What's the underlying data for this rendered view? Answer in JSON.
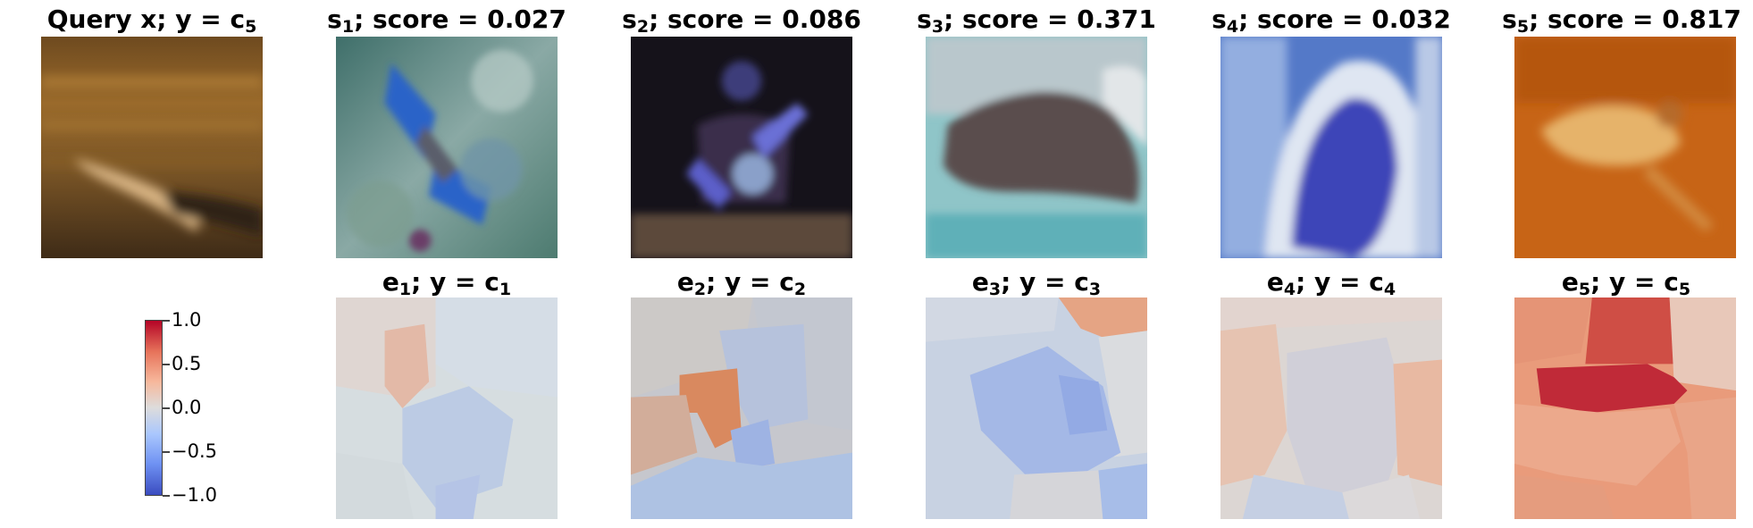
{
  "query": {
    "label": "Query x; y = ",
    "class_sym": "c",
    "class_idx": "5"
  },
  "samples": [
    {
      "sym": "s",
      "idx": "1",
      "score_text": "; score = 0.027"
    },
    {
      "sym": "s",
      "idx": "2",
      "score_text": "; score = 0.086"
    },
    {
      "sym": "s",
      "idx": "3",
      "score_text": "; score = 0.371"
    },
    {
      "sym": "s",
      "idx": "4",
      "score_text": "; score = 0.032"
    },
    {
      "sym": "s",
      "idx": "5",
      "score_text": "; score = 0.817"
    }
  ],
  "explanations": [
    {
      "sym": "e",
      "idx": "1",
      "mid": "; y = ",
      "csym": "c",
      "cidx": "1"
    },
    {
      "sym": "e",
      "idx": "2",
      "mid": "; y = ",
      "csym": "c",
      "cidx": "2"
    },
    {
      "sym": "e",
      "idx": "3",
      "mid": "; y = ",
      "csym": "c",
      "cidx": "3"
    },
    {
      "sym": "e",
      "idx": "4",
      "mid": "; y = ",
      "csym": "c",
      "cidx": "4"
    },
    {
      "sym": "e",
      "idx": "5",
      "mid": "; y = ",
      "csym": "c",
      "cidx": "5"
    }
  ],
  "colorbar": {
    "colormap": "coolwarm",
    "range": [
      -1.0,
      1.0
    ],
    "ticks": [
      "1.0",
      "0.5",
      "0.0",
      "−0.5",
      "−1.0"
    ]
  },
  "colors": {
    "cold": "#3b4cc0",
    "neutral": "#dddcdc",
    "warm": "#b40426"
  }
}
